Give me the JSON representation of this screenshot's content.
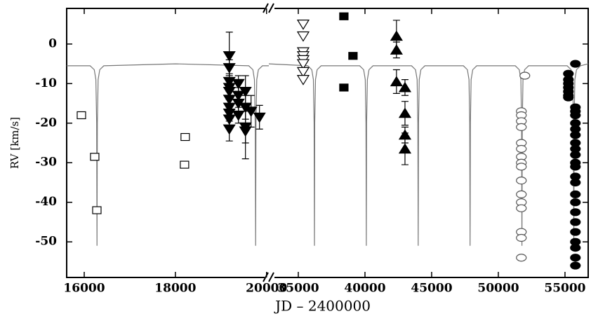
{
  "chart_data": {
    "type": "scatter",
    "xlabel": "JD – 2400000",
    "ylabel": "RV [km/s]",
    "xlim": [
      15615,
      56740
    ],
    "x_break": [
      20050,
      32790
    ],
    "xticks": [
      16000,
      18000,
      20000,
      35000,
      40000,
      45000,
      50000,
      55000
    ],
    "ylim": [
      -59,
      9
    ],
    "yticks": [
      0,
      -10,
      -20,
      -30,
      -40,
      -50
    ],
    "series": [
      {
        "marker": "line",
        "color": "#777777",
        "x": [
          15615,
          16130,
          16220,
          16255,
          16272,
          16280,
          16288,
          16305,
          16340,
          16430,
          18000,
          19610,
          19700,
          19735,
          19752,
          19760,
          19768,
          19785,
          19820,
          19910,
          20050,
          null,
          32790,
          35710,
          36010,
          36130,
          36185,
          36210,
          36235,
          36290,
          36410,
          36710,
          39600,
          39900,
          40020,
          40075,
          40100,
          40125,
          40180,
          40300,
          40600,
          43490,
          43790,
          43910,
          43965,
          43990,
          44015,
          44070,
          44190,
          44490,
          47380,
          47680,
          47800,
          47855,
          47880,
          47905,
          47960,
          48080,
          48380,
          51270,
          51570,
          51690,
          51745,
          51770,
          51795,
          51850,
          51970,
          52270,
          55160,
          55460,
          55580,
          55635,
          55660,
          55685,
          55740,
          55860,
          56160,
          56740
        ],
        "values": [
          -5.5,
          -5.5,
          -6.5,
          -9,
          -20,
          -51,
          -20,
          -9,
          -6.5,
          -5.5,
          -5,
          -5.5,
          -6.5,
          -9,
          -20,
          -51,
          -20,
          -9,
          -6.5,
          -5.5,
          -5.5,
          null,
          -5,
          -5.5,
          -6.5,
          -9,
          -20,
          -51,
          -20,
          -9,
          -6.5,
          -5.5,
          -5.5,
          -6.5,
          -9,
          -20,
          -51,
          -20,
          -9,
          -6.5,
          -5.5,
          -5.5,
          -6.5,
          -9,
          -20,
          -51,
          -20,
          -9,
          -6.5,
          -5.5,
          -5.5,
          -6.5,
          -9,
          -20,
          -51,
          -20,
          -9,
          -6.5,
          -5.5,
          -5.5,
          -6.5,
          -9,
          -20,
          -51,
          -20,
          -9,
          -6.5,
          -5.5,
          -5.5,
          -6.5,
          -9,
          -20,
          -51,
          -20,
          -9,
          -6.5,
          -5.5,
          -5
        ]
      },
      {
        "marker": "square-open",
        "color": "#000000",
        "x": [
          15938,
          16230,
          16277,
          18215,
          18200
        ],
        "values": [
          -18,
          -28.5,
          -42,
          -23.5,
          -30.5
        ]
      },
      {
        "marker": "triangle-down-filled",
        "color": "#000000",
        "x": [
          19183,
          19183,
          19183,
          19183,
          19183,
          19183,
          19183,
          19183,
          19183,
          19183,
          19383,
          19383,
          19383,
          19383,
          19537,
          19537,
          19537,
          19537,
          19660,
          19845
        ],
        "values": [
          -3,
          -6,
          -9.5,
          -11,
          -12,
          -14,
          -16,
          -17.5,
          -19,
          -21.5,
          -10,
          -13,
          -15,
          -18,
          -21,
          -22,
          -12,
          -16,
          -17,
          -18.5
        ],
        "errors": [
          6,
          2,
          2,
          2,
          2,
          2,
          2,
          2,
          2,
          3,
          2,
          2,
          2,
          2,
          4,
          7,
          4,
          3,
          4,
          3
        ]
      },
      {
        "marker": "triangle-down-open",
        "color": "#000000",
        "x": [
          35368,
          35368,
          35368,
          35368,
          35368,
          35368,
          35368,
          35368
        ],
        "values": [
          5,
          2,
          -2,
          -3,
          -4,
          -5,
          -7,
          -9
        ]
      },
      {
        "marker": "square-filled",
        "color": "#000000",
        "x": [
          38418,
          38418,
          39100
        ],
        "values": [
          7,
          -11,
          -3
        ]
      },
      {
        "marker": "triangle-up-filled",
        "color": "#000000",
        "x": [
          42363,
          42363,
          42363,
          43000,
          43000,
          43000,
          43000
        ],
        "values": [
          2,
          -1.5,
          -9.5,
          -11,
          -17.5,
          -23,
          -26.5
        ],
        "errors": [
          4,
          2,
          3,
          2,
          3,
          2,
          4
        ]
      },
      {
        "marker": "circle-open",
        "color": "#555555",
        "x": [
          51990,
          51726,
          51726,
          51726,
          51726,
          51726,
          51726,
          51726,
          51726,
          51726,
          51726,
          51726,
          51726,
          51726,
          51726,
          51726,
          51726
        ],
        "values": [
          -8,
          -17,
          -18,
          -19.5,
          -21,
          -25,
          -26.5,
          -28.5,
          -30,
          -31,
          -34.5,
          -38,
          -40,
          -41.5,
          -47.5,
          -49,
          -54
        ]
      },
      {
        "marker": "circle-filled",
        "color": "#000000",
        "x": [
          55255,
          55255,
          55255,
          55255,
          55255,
          55255,
          55255,
          55780,
          55780,
          55780,
          55780,
          55780,
          55780,
          55780,
          55780,
          55780,
          55780,
          55780,
          55780,
          55780,
          55780,
          55780,
          55780,
          55780,
          55780,
          55780,
          55780,
          55780,
          55780,
          55780
        ],
        "values": [
          -7.5,
          -9,
          -10,
          -11,
          -12,
          -13,
          -13.5,
          -5,
          -16,
          -17,
          -18,
          -20,
          -21.5,
          -23,
          -25,
          -26.5,
          -28,
          -30,
          -31,
          -33.5,
          -35,
          -38,
          -40,
          -42.5,
          -45,
          -47.5,
          -50,
          -51.5,
          -54,
          -56
        ]
      }
    ]
  }
}
